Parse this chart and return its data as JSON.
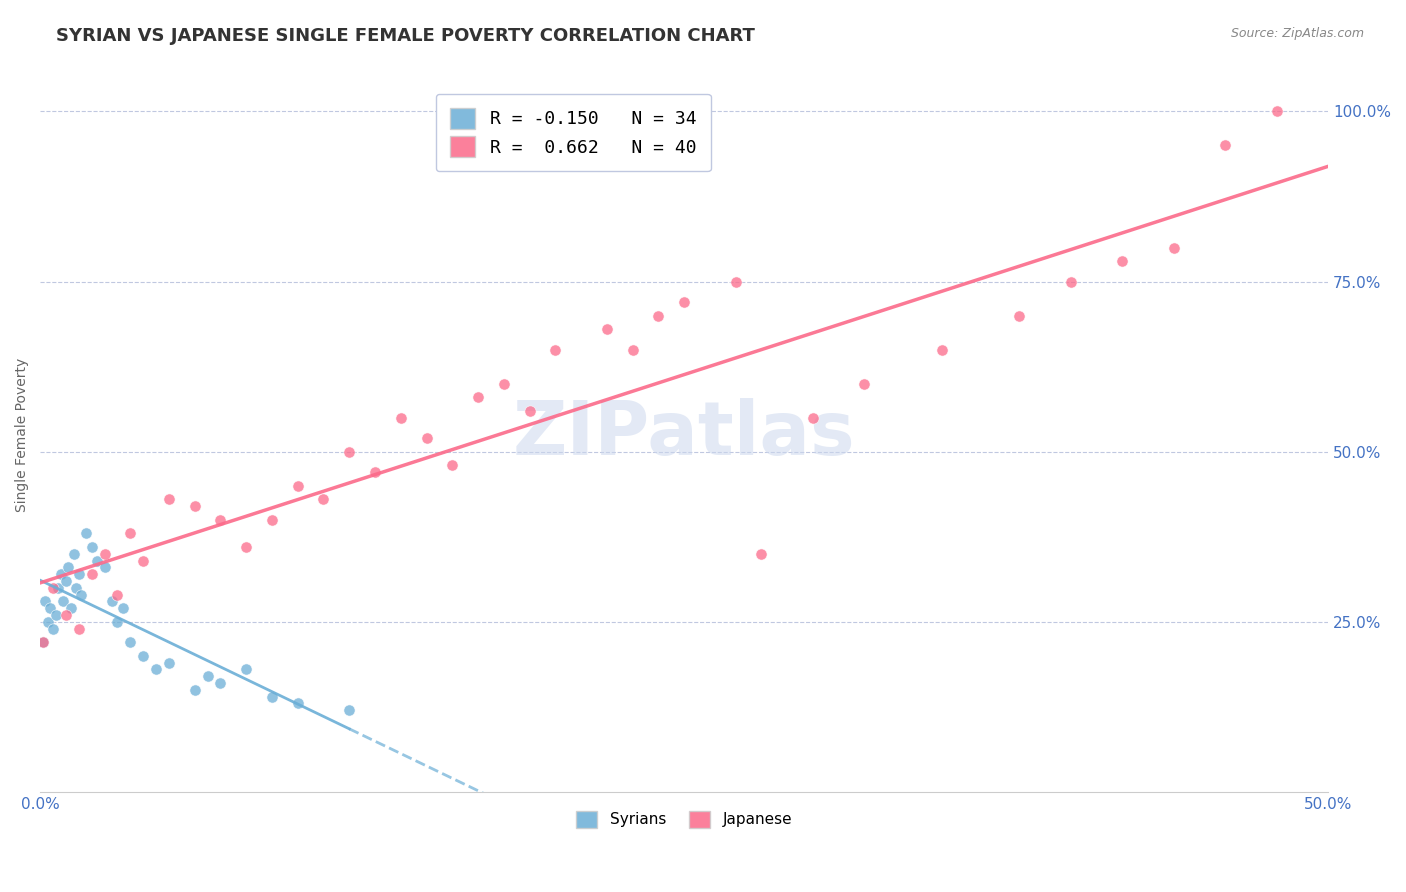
{
  "title": "SYRIAN VS JAPANESE SINGLE FEMALE POVERTY CORRELATION CHART",
  "source": "Source: ZipAtlas.com",
  "ylabel": "Single Female Poverty",
  "xlim": [
    0.0,
    0.5
  ],
  "ylim": [
    0.0,
    1.05
  ],
  "xtick_labels": [
    "0.0%",
    "50.0%"
  ],
  "ytick_labels": [
    "25.0%",
    "50.0%",
    "75.0%",
    "100.0%"
  ],
  "ytick_positions": [
    0.25,
    0.5,
    0.75,
    1.0
  ],
  "legend_entries": [
    {
      "label": "R = -0.150   N = 34",
      "color": "#6baed6"
    },
    {
      "label": "R =  0.662   N = 40",
      "color": "#fb6a8a"
    }
  ],
  "syrians_color": "#6baed6",
  "japanese_color": "#fb6a8a",
  "watermark": "ZIPatlas",
  "syrian_x": [
    0.001,
    0.002,
    0.003,
    0.004,
    0.005,
    0.006,
    0.007,
    0.008,
    0.009,
    0.01,
    0.011,
    0.012,
    0.013,
    0.014,
    0.015,
    0.016,
    0.018,
    0.02,
    0.022,
    0.025,
    0.028,
    0.03,
    0.032,
    0.035,
    0.04,
    0.045,
    0.05,
    0.06,
    0.065,
    0.07,
    0.08,
    0.09,
    0.1,
    0.12
  ],
  "syrian_y": [
    0.22,
    0.28,
    0.25,
    0.27,
    0.24,
    0.26,
    0.3,
    0.32,
    0.28,
    0.31,
    0.33,
    0.27,
    0.35,
    0.3,
    0.32,
    0.29,
    0.38,
    0.36,
    0.34,
    0.33,
    0.28,
    0.25,
    0.27,
    0.22,
    0.2,
    0.18,
    0.19,
    0.15,
    0.17,
    0.16,
    0.18,
    0.14,
    0.13,
    0.12
  ],
  "japanese_x": [
    0.001,
    0.005,
    0.01,
    0.015,
    0.02,
    0.025,
    0.03,
    0.035,
    0.04,
    0.05,
    0.06,
    0.07,
    0.08,
    0.09,
    0.1,
    0.11,
    0.12,
    0.13,
    0.14,
    0.15,
    0.16,
    0.17,
    0.18,
    0.19,
    0.2,
    0.22,
    0.23,
    0.24,
    0.25,
    0.27,
    0.28,
    0.3,
    0.32,
    0.35,
    0.38,
    0.4,
    0.42,
    0.44,
    0.46,
    0.48
  ],
  "japanese_y": [
    0.22,
    0.3,
    0.26,
    0.24,
    0.32,
    0.35,
    0.29,
    0.38,
    0.34,
    0.43,
    0.42,
    0.4,
    0.36,
    0.4,
    0.45,
    0.43,
    0.5,
    0.47,
    0.55,
    0.52,
    0.48,
    0.58,
    0.6,
    0.56,
    0.65,
    0.68,
    0.65,
    0.7,
    0.72,
    0.75,
    0.35,
    0.55,
    0.6,
    0.65,
    0.7,
    0.75,
    0.78,
    0.8,
    0.95,
    1.0
  ],
  "background_color": "#ffffff",
  "grid_color": "#c0c8e0",
  "title_fontsize": 13,
  "tick_label_color": "#4472c4",
  "title_color": "#333333"
}
